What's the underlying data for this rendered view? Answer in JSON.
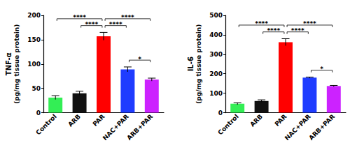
{
  "chart_data": [
    {
      "type": "bar",
      "y_label": [
        "TNF-α",
        "(pg/mg tissue protein)"
      ],
      "categories": [
        "Control",
        "ARB",
        "PAR",
        "NAC+PAR",
        "ARB+PAR"
      ],
      "values": [
        31,
        40,
        157,
        89,
        68
      ],
      "errors": [
        4,
        4,
        8,
        5,
        3
      ],
      "colors": [
        "#33ee55",
        "#111111",
        "#ff0000",
        "#1f3cff",
        "#cc22ff"
      ],
      "ylim": [
        0,
        200
      ],
      "yticks": [
        0,
        50,
        100,
        150,
        200
      ],
      "grid": false,
      "annotations": [
        {
          "from": "Control",
          "to": "PAR",
          "text": "****"
        },
        {
          "from": "ARB",
          "to": "PAR",
          "text": "****"
        },
        {
          "from": "PAR",
          "to": "NAC+PAR",
          "text": "****"
        },
        {
          "from": "PAR",
          "to": "ARB+PAR",
          "text": "****"
        },
        {
          "from": "NAC+PAR",
          "to": "ARB+PAR",
          "text": "*"
        }
      ]
    },
    {
      "type": "bar",
      "y_label": [
        "IL-6",
        "(pg/mg tissue protein)"
      ],
      "categories": [
        "Control",
        "ARB",
        "PAR",
        "NAC+PAR",
        "ARB+PAR"
      ],
      "values": [
        46,
        60,
        362,
        180,
        137
      ],
      "errors": [
        5,
        6,
        18,
        3,
        3
      ],
      "colors": [
        "#33ee55",
        "#111111",
        "#ff0000",
        "#1f3cff",
        "#cc22ff"
      ],
      "ylim": [
        0,
        500
      ],
      "yticks": [
        0,
        100,
        200,
        300,
        400,
        500
      ],
      "grid": false,
      "annotations": [
        {
          "from": "Control",
          "to": "PAR",
          "text": "****"
        },
        {
          "from": "ARB",
          "to": "PAR",
          "text": "****"
        },
        {
          "from": "PAR",
          "to": "NAC+PAR",
          "text": "****"
        },
        {
          "from": "PAR",
          "to": "ARB+PAR",
          "text": "****"
        },
        {
          "from": "NAC+PAR",
          "to": "ARB+PAR",
          "text": "*"
        }
      ]
    }
  ]
}
